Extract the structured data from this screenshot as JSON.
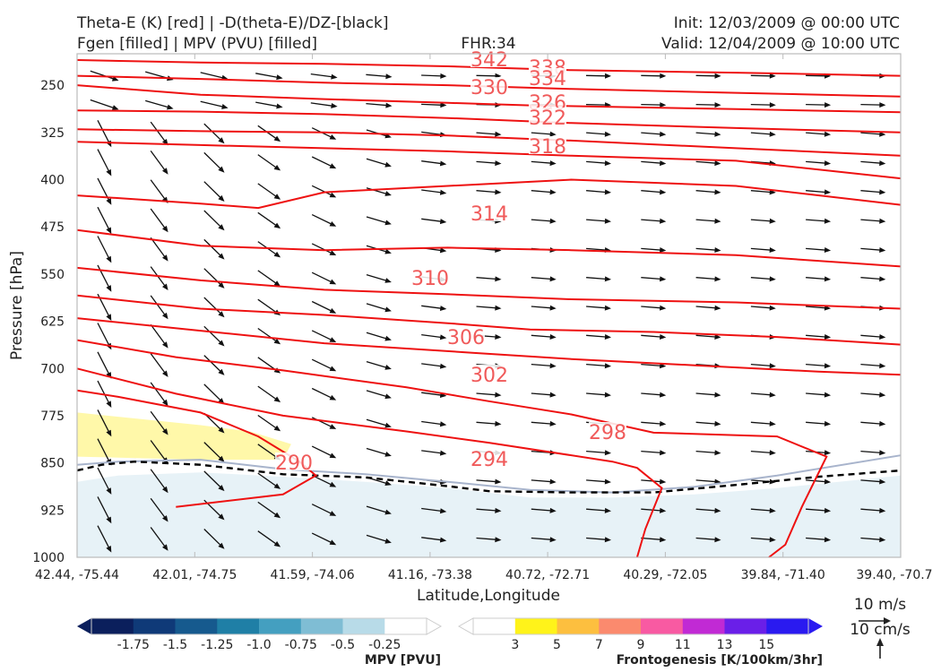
{
  "title": {
    "left_line1": "Theta-E (K) [red] | -D(theta-E)/DZ-[black]",
    "left_line2": "Fgen [filled] | MPV (PVU) [filled]",
    "center": "FHR:34",
    "right_line1": "Init: 12/03/2009 @ 00:00 UTC",
    "right_line2": "Valid: 12/04/2009 @ 10:00 UTC"
  },
  "chart_data": {
    "type": "cross-section",
    "ylabel": "Pressure [hPa]",
    "xlabel": "Latitude,Longitude",
    "y_ticks": [
      250,
      325,
      400,
      475,
      550,
      625,
      700,
      775,
      850,
      925,
      1000
    ],
    "ylim": [
      1000,
      200
    ],
    "x_ticks": [
      "42.44, -75.44",
      "42.01, -74.75",
      "41.59, -74.06",
      "41.16, -73.38",
      "40.72, -72.71",
      "40.29, -72.05",
      "39.84, -71.40",
      "39.40, -70.7"
    ],
    "theta_e_contours": [
      {
        "label": "290",
        "color": "#ee1111",
        "points": [
          [
            0,
            735
          ],
          [
            0.05,
            745
          ],
          [
            0.15,
            770
          ],
          [
            0.22,
            808
          ],
          [
            0.25,
            832
          ],
          [
            0.27,
            848
          ],
          [
            0.29,
            870
          ],
          [
            0.25,
            900
          ],
          [
            0.12,
            920
          ]
        ]
      },
      {
        "label": "294",
        "color": "#ee1111",
        "points": [
          [
            0,
            700
          ],
          [
            0.12,
            740
          ],
          [
            0.25,
            775
          ],
          [
            0.4,
            800
          ],
          [
            0.5,
            818
          ],
          [
            0.65,
            848
          ],
          [
            0.68,
            858
          ],
          [
            0.71,
            890
          ],
          [
            0.69,
            955
          ],
          [
            0.68,
            1000
          ]
        ]
      },
      {
        "label": "298",
        "color": "#ee1111",
        "points": [
          [
            0,
            655
          ],
          [
            0.12,
            682
          ],
          [
            0.25,
            703
          ],
          [
            0.4,
            730
          ],
          [
            0.5,
            752
          ],
          [
            0.6,
            773
          ],
          [
            0.7,
            802
          ],
          [
            0.85,
            808
          ],
          [
            0.91,
            840
          ],
          [
            0.88,
            920
          ],
          [
            0.86,
            980
          ],
          [
            0.84,
            1000
          ]
        ]
      },
      {
        "label": "302",
        "color": "#ee1111",
        "points": [
          [
            0,
            620
          ],
          [
            0.15,
            640
          ],
          [
            0.3,
            660
          ],
          [
            0.48,
            675
          ],
          [
            0.6,
            685
          ],
          [
            0.75,
            695
          ],
          [
            0.9,
            705
          ],
          [
            1,
            710
          ]
        ]
      },
      {
        "label": "306",
        "color": "#ee1111",
        "points": [
          [
            0,
            584
          ],
          [
            0.15,
            605
          ],
          [
            0.3,
            615
          ],
          [
            0.45,
            628
          ],
          [
            0.55,
            638
          ],
          [
            0.7,
            642
          ],
          [
            0.85,
            650
          ],
          [
            1,
            662
          ]
        ]
      },
      {
        "label": "310",
        "color": "#ee1111",
        "points": [
          [
            0,
            540
          ],
          [
            0.15,
            560
          ],
          [
            0.3,
            575
          ],
          [
            0.45,
            582
          ],
          [
            0.6,
            590
          ],
          [
            0.8,
            595
          ],
          [
            1,
            605
          ]
        ]
      },
      {
        "label": "314",
        "color": "#ee1111",
        "points": [
          [
            0,
            480
          ],
          [
            0.15,
            505
          ],
          [
            0.3,
            512
          ],
          [
            0.45,
            508
          ],
          [
            0.6,
            512
          ],
          [
            0.8,
            520
          ],
          [
            1,
            538
          ]
        ]
      },
      {
        "label": "318",
        "color": "#ee1111",
        "points": [
          [
            0,
            425
          ],
          [
            0.15,
            438
          ],
          [
            0.22,
            445
          ],
          [
            0.3,
            420
          ],
          [
            0.45,
            410
          ],
          [
            0.6,
            400
          ],
          [
            0.8,
            410
          ],
          [
            1,
            440
          ]
        ]
      },
      {
        "label": "322",
        "color": "#ee1111",
        "points": [
          [
            0,
            340
          ],
          [
            0.15,
            345
          ],
          [
            0.3,
            350
          ],
          [
            0.45,
            355
          ],
          [
            0.6,
            362
          ],
          [
            0.8,
            370
          ],
          [
            1,
            398
          ]
        ]
      },
      {
        "label": "326",
        "color": "#ee1111",
        "points": [
          [
            0,
            320
          ],
          [
            0.15,
            323
          ],
          [
            0.3,
            325
          ],
          [
            0.45,
            330
          ],
          [
            0.6,
            338
          ],
          [
            0.8,
            350
          ],
          [
            1,
            362
          ]
        ]
      },
      {
        "label": "330",
        "color": "#ee1111",
        "points": [
          [
            0,
            290
          ],
          [
            0.15,
            292
          ],
          [
            0.3,
            296
          ],
          [
            0.45,
            302
          ],
          [
            0.6,
            310
          ],
          [
            0.8,
            318
          ],
          [
            1,
            325
          ]
        ]
      },
      {
        "label": "334",
        "color": "#ee1111",
        "points": [
          [
            0,
            250
          ],
          [
            0.15,
            265
          ],
          [
            0.3,
            272
          ],
          [
            0.45,
            278
          ],
          [
            0.55,
            282
          ],
          [
            0.8,
            288
          ],
          [
            1,
            293
          ]
        ]
      },
      {
        "label": "338",
        "color": "#ee1111",
        "points": [
          [
            0,
            235
          ],
          [
            0.15,
            240
          ],
          [
            0.3,
            246
          ],
          [
            0.45,
            250
          ],
          [
            0.6,
            256
          ],
          [
            0.8,
            262
          ],
          [
            1,
            268
          ]
        ]
      },
      {
        "label": "342",
        "color": "#ee1111",
        "points": [
          [
            0,
            210
          ],
          [
            0.15,
            214
          ],
          [
            0.3,
            216
          ],
          [
            0.45,
            220
          ],
          [
            0.6,
            226
          ],
          [
            0.8,
            230
          ],
          [
            1,
            235
          ]
        ]
      }
    ],
    "contour_label_positions": [
      {
        "label": "342",
        "x": 0.5,
        "p": 218
      },
      {
        "label": "338",
        "x": 0.57,
        "p": 232
      },
      {
        "label": "334",
        "x": 0.57,
        "p": 244
      },
      {
        "label": "330",
        "x": 0.5,
        "p": 253
      },
      {
        "label": "326",
        "x": 0.57,
        "p": 289
      },
      {
        "label": "322",
        "x": 0.57,
        "p": 314
      },
      {
        "label": "318",
        "x": 0.57,
        "p": 371
      },
      {
        "label": "314",
        "x": 0.5,
        "p": 531
      },
      {
        "label": "310",
        "x": 0.43,
        "p": 697
      },
      {
        "label": "306",
        "x": 0.47,
        "p": 860
      },
      {
        "label": "302",
        "x": 0.5,
        "p": 968
      },
      {
        "label": "298",
        "x": 0.64,
        "p": 1148
      },
      {
        "label": "294",
        "x": 0.5,
        "p": 1225
      },
      {
        "label": "290",
        "x": 0.265,
        "p": 1240
      }
    ],
    "dashed_line": [
      [
        0,
        862
      ],
      [
        0.03,
        853
      ],
      [
        0.07,
        848
      ],
      [
        0.15,
        853
      ],
      [
        0.25,
        868
      ],
      [
        0.35,
        873
      ],
      [
        0.45,
        887
      ],
      [
        0.5,
        895
      ],
      [
        0.6,
        897
      ],
      [
        0.7,
        897
      ],
      [
        0.8,
        885
      ],
      [
        0.9,
        872
      ],
      [
        1,
        862
      ]
    ],
    "boundary_line": [
      [
        0,
        853
      ],
      [
        0.05,
        848
      ],
      [
        0.15,
        845
      ],
      [
        0.25,
        860
      ],
      [
        0.35,
        868
      ],
      [
        0.45,
        880
      ],
      [
        0.55,
        893
      ],
      [
        0.65,
        897
      ],
      [
        0.75,
        888
      ],
      [
        0.85,
        870
      ],
      [
        1,
        838
      ]
    ],
    "mpv_fill_region": [
      [
        0,
        880
      ],
      [
        0.05,
        870
      ],
      [
        0.15,
        865
      ],
      [
        0.25,
        872
      ],
      [
        0.35,
        880
      ],
      [
        0.45,
        890
      ],
      [
        0.55,
        905
      ],
      [
        0.65,
        905
      ],
      [
        0.75,
        900
      ],
      [
        0.85,
        890
      ],
      [
        1,
        870
      ],
      [
        1,
        1000
      ],
      [
        0,
        1000
      ]
    ],
    "fgen_fill_region": [
      [
        0,
        770
      ],
      [
        0.15,
        790
      ],
      [
        0.21,
        800
      ],
      [
        0.26,
        820
      ],
      [
        0.25,
        845
      ],
      [
        0.15,
        845
      ],
      [
        0,
        840
      ]
    ],
    "wind_vectors_note": "black arrows across the cross-section",
    "mpv_colorbar": {
      "label": "MPV [PVU]",
      "ticks": [
        "-1.75",
        "-1.5",
        "-1.25",
        "-1.0",
        "-0.75",
        "-0.5",
        "-0.25"
      ],
      "colors": [
        "#0b1f5c",
        "#0f3a78",
        "#165a8e",
        "#1f7fa6",
        "#449fc0",
        "#7fbdd4",
        "#b8dbe8",
        "#ffffff"
      ]
    },
    "fgen_colorbar": {
      "label": "Frontogenesis [K/100km/3hr]",
      "ticks": [
        "3",
        "5",
        "7",
        "9",
        "11",
        "13",
        "15"
      ],
      "colors": [
        "#ffffff",
        "#fff31a",
        "#fdbf3f",
        "#fb8a6e",
        "#f85aa2",
        "#c12ad4",
        "#6a1fe8",
        "#2a1af0"
      ]
    },
    "reference_vectors": {
      "horizontal": "10 m/s",
      "vertical": "10 cm/s"
    }
  }
}
